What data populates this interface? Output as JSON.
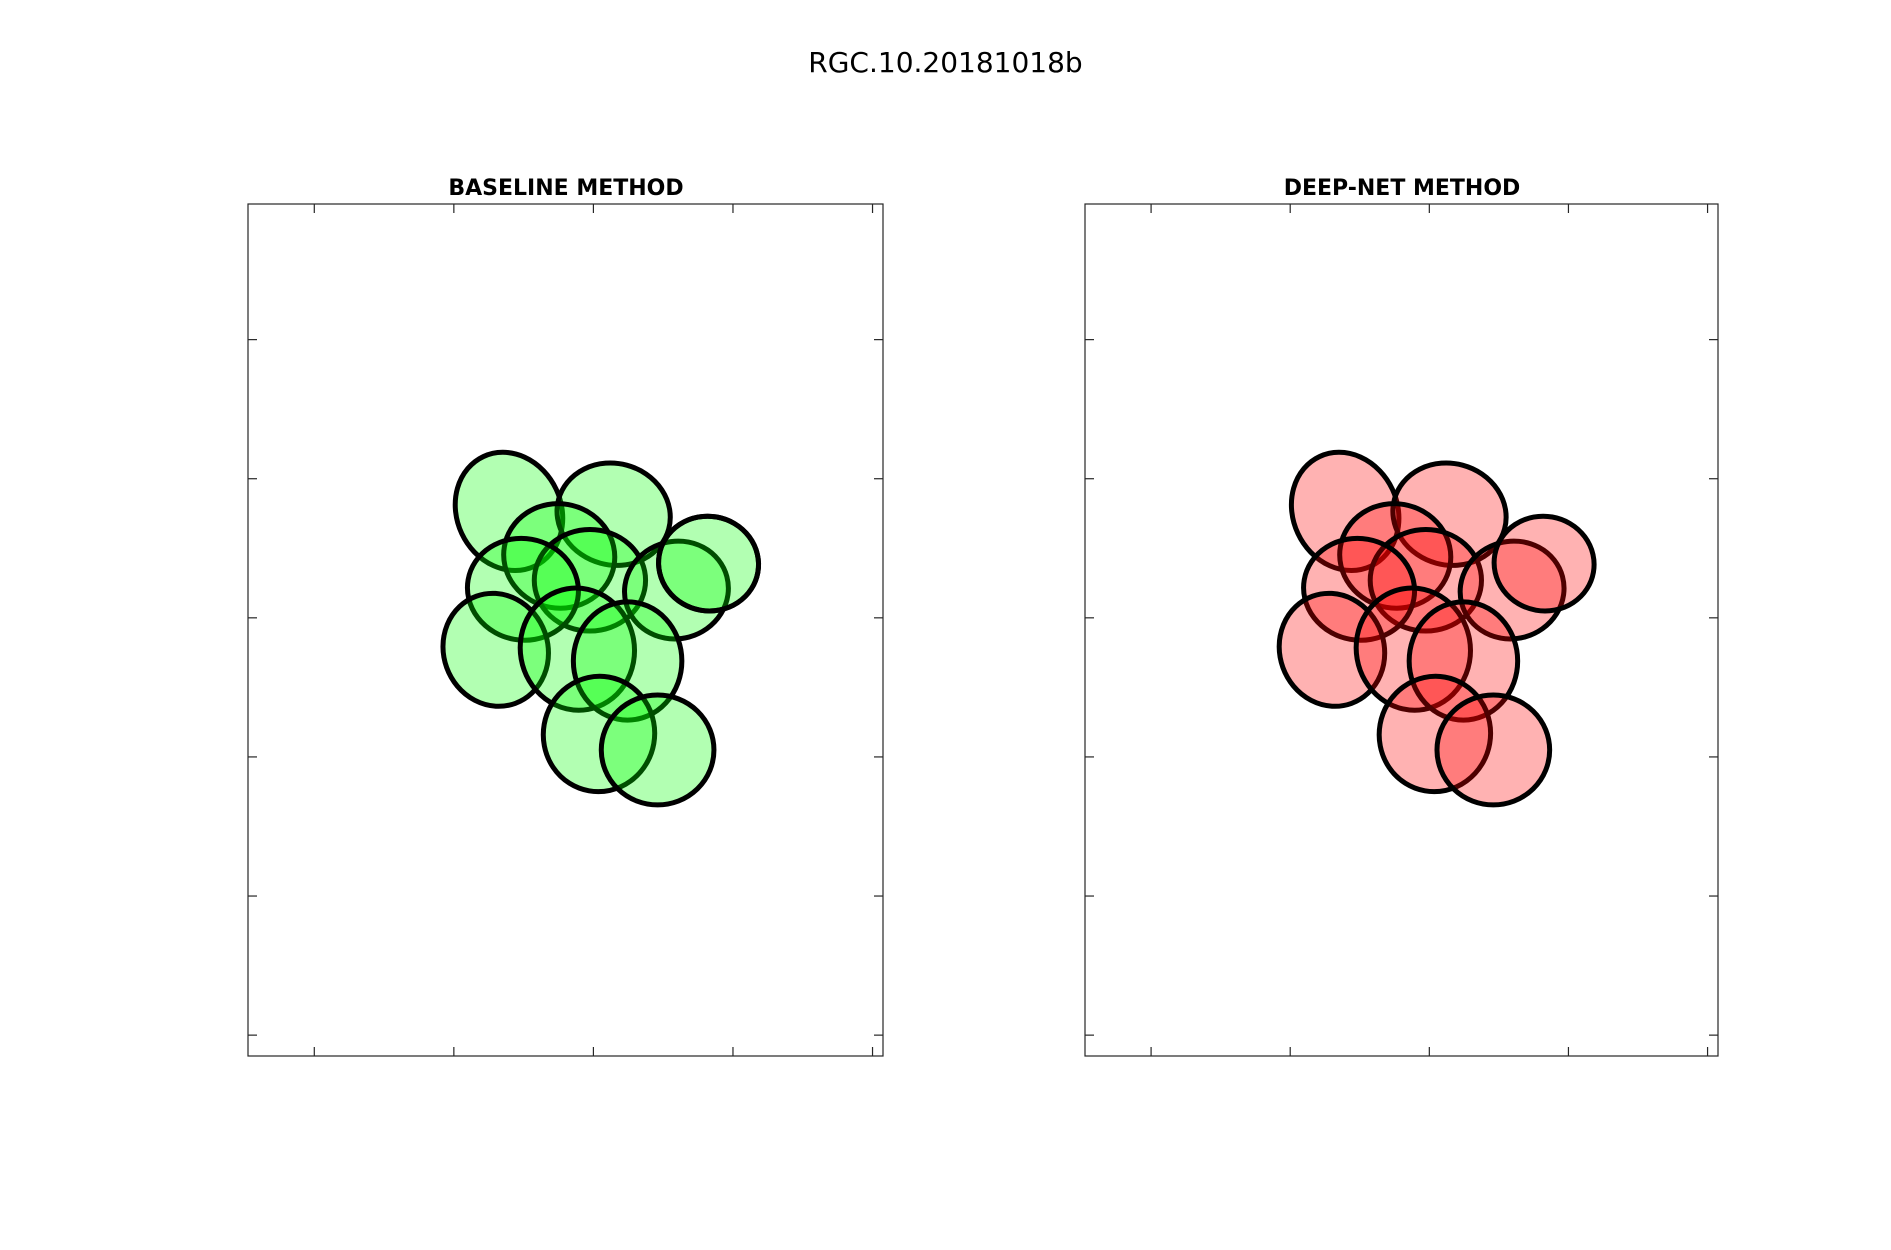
{
  "figure_title": "RGC.10.20181018b",
  "colors": {
    "baseline_fill": "#00ff00",
    "deepnet_fill": "#ff0000",
    "outline": "#000000",
    "axes_frame": "#262626"
  },
  "chart_data": [
    {
      "type": "scatter",
      "title": "BASELINE METHOD",
      "xlabel": "",
      "ylabel": "",
      "xlim": [
        0,
        9.1
      ],
      "ylim": [
        0,
        12.25
      ],
      "xticks": [
        0.95,
        2.95,
        4.95,
        6.95,
        8.95
      ],
      "yticks": [
        0.3,
        2.3,
        4.3,
        6.3,
        8.3,
        10.3
      ],
      "tick_labels_shown": false,
      "grid": false,
      "fill_color": "#00ff00",
      "fill_opacity": 0.3,
      "unfilled_indices": [
        10
      ],
      "ellipses": [
        {
          "cx": 3.74,
          "cy": 7.83,
          "rx": 0.75,
          "ry": 0.87,
          "angle": -25
        },
        {
          "cx": 5.24,
          "cy": 7.79,
          "rx": 0.82,
          "ry": 0.73,
          "angle": 15
        },
        {
          "cx": 4.46,
          "cy": 7.19,
          "rx": 0.8,
          "ry": 0.75,
          "angle": 10
        },
        {
          "cx": 4.9,
          "cy": 6.84,
          "rx": 0.8,
          "ry": 0.73,
          "angle": 0
        },
        {
          "cx": 3.94,
          "cy": 6.71,
          "rx": 0.8,
          "ry": 0.73,
          "angle": 10
        },
        {
          "cx": 6.14,
          "cy": 6.7,
          "rx": 0.75,
          "ry": 0.7,
          "angle": -15
        },
        {
          "cx": 3.55,
          "cy": 5.84,
          "rx": 0.75,
          "ry": 0.82,
          "angle": -20
        },
        {
          "cx": 4.72,
          "cy": 5.85,
          "rx": 0.82,
          "ry": 0.88,
          "angle": -10
        },
        {
          "cx": 5.44,
          "cy": 5.68,
          "rx": 0.78,
          "ry": 0.85,
          "angle": 0
        },
        {
          "cx": 6.6,
          "cy": 7.08,
          "rx": 0.72,
          "ry": 0.68,
          "angle": 10
        },
        {
          "cx": 6.6,
          "cy": 7.08,
          "rx": 0.72,
          "ry": 0.68,
          "angle": 10
        },
        {
          "cx": 5.03,
          "cy": 4.63,
          "rx": 0.8,
          "ry": 0.83,
          "angle": 10
        },
        {
          "cx": 5.87,
          "cy": 4.4,
          "rx": 0.81,
          "ry": 0.79,
          "angle": 0
        }
      ]
    },
    {
      "type": "scatter",
      "title": "DEEP-NET METHOD",
      "xlabel": "",
      "ylabel": "",
      "xlim": [
        0,
        9.1
      ],
      "ylim": [
        0,
        12.25
      ],
      "xticks": [
        0.95,
        2.95,
        4.95,
        6.95,
        8.95
      ],
      "yticks": [
        0.3,
        2.3,
        4.3,
        6.3,
        8.3,
        10.3
      ],
      "tick_labels_shown": false,
      "grid": false,
      "fill_color": "#ff0000",
      "fill_opacity": 0.3,
      "unfilled_indices": [],
      "ellipses": [
        {
          "cx": 3.74,
          "cy": 7.83,
          "rx": 0.75,
          "ry": 0.87,
          "angle": -25
        },
        {
          "cx": 5.24,
          "cy": 7.79,
          "rx": 0.82,
          "ry": 0.73,
          "angle": 15
        },
        {
          "cx": 4.46,
          "cy": 7.19,
          "rx": 0.8,
          "ry": 0.75,
          "angle": 10
        },
        {
          "cx": 4.9,
          "cy": 6.84,
          "rx": 0.8,
          "ry": 0.73,
          "angle": 0
        },
        {
          "cx": 3.94,
          "cy": 6.71,
          "rx": 0.8,
          "ry": 0.73,
          "angle": 10
        },
        {
          "cx": 6.14,
          "cy": 6.7,
          "rx": 0.75,
          "ry": 0.7,
          "angle": -15
        },
        {
          "cx": 3.55,
          "cy": 5.84,
          "rx": 0.75,
          "ry": 0.82,
          "angle": -20
        },
        {
          "cx": 4.72,
          "cy": 5.85,
          "rx": 0.82,
          "ry": 0.88,
          "angle": -10
        },
        {
          "cx": 5.44,
          "cy": 5.68,
          "rx": 0.78,
          "ry": 0.85,
          "angle": 0
        },
        {
          "cx": 6.6,
          "cy": 7.08,
          "rx": 0.72,
          "ry": 0.68,
          "angle": 10
        },
        {
          "cx": 5.03,
          "cy": 4.63,
          "rx": 0.8,
          "ry": 0.83,
          "angle": 10
        },
        {
          "cx": 5.87,
          "cy": 4.4,
          "rx": 0.81,
          "ry": 0.79,
          "angle": 0
        }
      ]
    }
  ]
}
